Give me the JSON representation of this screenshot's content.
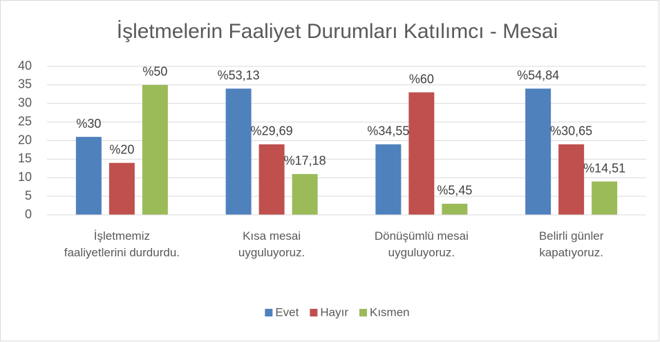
{
  "chart_data": {
    "type": "bar",
    "title": "İşletmelerin Faaliyet Durumları Katılımcı - Mesai",
    "categories": [
      "İşletmemiz faaliyetlerini durdurdu.",
      "Kısa mesai uyguluyoruz.",
      "Dönüşümlü mesai uyguluyoruz.",
      "Belirli günler kapatıyoruz."
    ],
    "series": [
      {
        "name": "Evet",
        "color": "#4f81bd",
        "values": [
          21,
          34,
          19,
          34
        ],
        "value_labels": [
          "%30",
          "%53,13",
          "%34,55",
          "%54,84"
        ]
      },
      {
        "name": "Hayır",
        "color": "#c0504d",
        "values": [
          14,
          19,
          33,
          19
        ],
        "value_labels": [
          "%20",
          "%29,69",
          "%60",
          "%30,65"
        ]
      },
      {
        "name": "Kısmen",
        "color": "#9bbb59",
        "values": [
          35,
          11,
          3,
          9
        ],
        "value_labels": [
          "%50",
          "%17,18",
          "%5,45",
          "%14,51"
        ]
      }
    ],
    "ylim": [
      0,
      40
    ],
    "yticks": [
      0,
      5,
      10,
      15,
      20,
      25,
      30,
      35,
      40
    ],
    "grid": true,
    "legend": "bottom"
  }
}
